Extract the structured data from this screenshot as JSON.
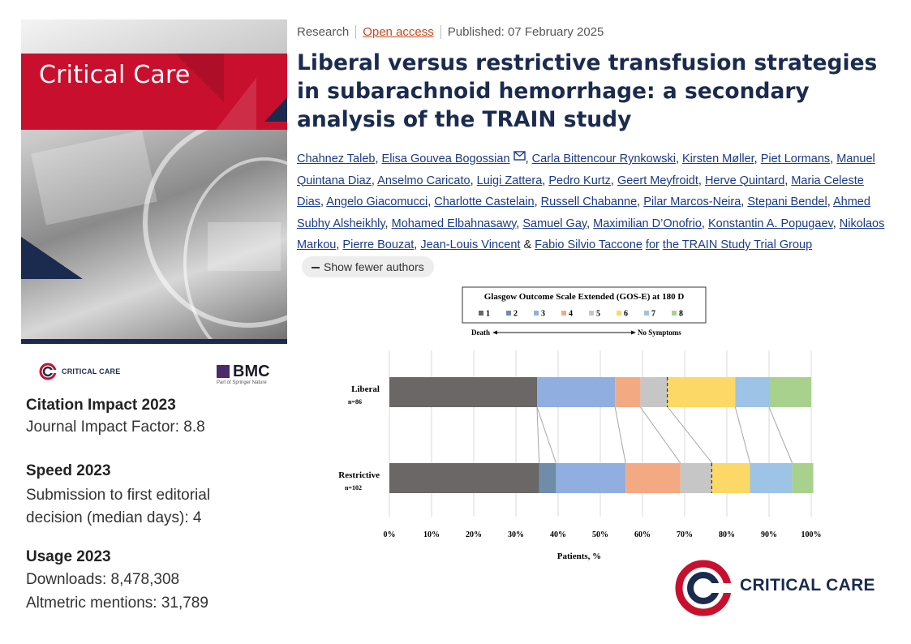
{
  "cover": {
    "journal_title": "Critical Care"
  },
  "logos": {
    "small_critical_care": "CRITICAL CARE",
    "bmc": "BMC",
    "bmc_sub": "Part of Springer Nature",
    "big_critical_care": "CRITICAL CARE"
  },
  "metrics": {
    "citation_heading": "Citation Impact 2023",
    "impact_factor": "Journal Impact Factor: 8.8",
    "speed_heading": "Speed 2023",
    "speed_line1": "Submission to first editorial",
    "speed_line2": "decision (median days): 4",
    "usage_heading": "Usage 2023",
    "downloads": "Downloads: 8,478,308",
    "altmetric": "Altmetric mentions: 31,789"
  },
  "article": {
    "type": "Research",
    "access": "Open access",
    "published": "Published: 07 February 2025",
    "title": "Liberal versus restrictive transfusion strategies in subarachnoid hemorrhage: a secondary analysis of the TRAIN study",
    "authors": [
      "Chahnez Taleb",
      "Elisa Gouvea Bogossian",
      "Carla Bittencour Rynkowski",
      "Kirsten Møller",
      "Piet Lormans",
      "Manuel Quintana Diaz",
      "Anselmo Caricato",
      "Luigi Zattera",
      "Pedro Kurtz",
      "Geert Meyfroidt",
      "Herve Quintard",
      "Maria Celeste Dias",
      "Angelo Giacomucci",
      "Charlotte Castelain",
      "Russell Chabanne",
      "Pilar Marcos-Neira",
      "Stepani Bendel",
      "Ahmed Subhy Alsheikhly",
      "Mohamed Elbahnasawy",
      "Samuel Gay",
      "Maximilian D’Onofrio",
      "Konstantin A. Popugaev",
      "Nikolaos Markou",
      "Pierre Bouzat",
      "Jean-Louis Vincent",
      "Fabio Silvio Taccone",
      "the TRAIN Study Trial Group"
    ],
    "show_fewer": "Show fewer authors"
  },
  "chart_data": {
    "type": "bar",
    "orientation": "horizontal-stacked",
    "title": "Glasgow Outcome Scale Extended (GOS-E) at 180 D",
    "legend": [
      {
        "label": "1",
        "color": "#6b6766"
      },
      {
        "label": "2",
        "color": "#6f8ca9"
      },
      {
        "label": "3",
        "color": "#91aee0"
      },
      {
        "label": "4",
        "color": "#f3aa82"
      },
      {
        "label": "5",
        "color": "#c6c6c6"
      },
      {
        "label": "6",
        "color": "#fcd866"
      },
      {
        "label": "7",
        "color": "#9dc3e6"
      },
      {
        "label": "8",
        "color": "#a9d18e"
      }
    ],
    "scale_left": "Death",
    "scale_right": "No Symptoms",
    "xlabel": "Patients, %",
    "xticks": [
      "0%",
      "10%",
      "20%",
      "30%",
      "40%",
      "50%",
      "60%",
      "70%",
      "80%",
      "90%",
      "100%"
    ],
    "xlim": [
      0,
      100
    ],
    "categories": [
      {
        "name": "Liberal",
        "n": "n=86",
        "values": [
          35,
          0,
          18.5,
          6,
          6.5,
          0,
          16,
          8,
          10
        ],
        "dashed_after": 5
      },
      {
        "name": "Restrictive",
        "n": "n=102",
        "values": [
          35.5,
          4,
          16.5,
          13,
          7.5,
          0,
          9,
          10,
          5
        ],
        "dashed_after": 5
      }
    ],
    "segments_note": "values listed in legend order 1,2,3,4,5,(split),6,7,8",
    "category_values": {
      "Liberal": [
        35,
        0,
        18.5,
        6,
        6.5,
        16,
        8,
        10
      ],
      "Restrictive": [
        35.5,
        4,
        16.5,
        13,
        7.5,
        9,
        10,
        5
      ]
    },
    "dashed_boundary_between": [
      "5",
      "6"
    ]
  }
}
